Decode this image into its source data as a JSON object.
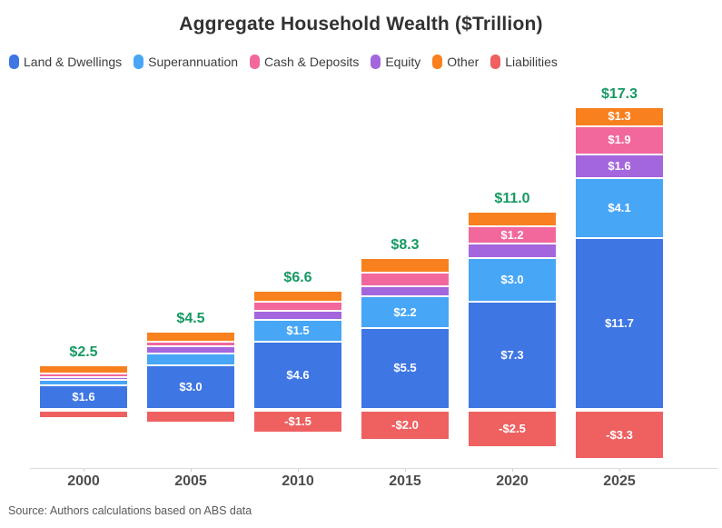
{
  "header": {
    "title": "Aggregate Household Wealth ($Trillion)"
  },
  "footer": {
    "source": "Source: Authors calculations based on ABS data"
  },
  "colors": {
    "title": "#323232",
    "total_label": "#169a62",
    "axis_line": "#dcdcdc",
    "x_label": "#4d4d4d",
    "source": "#595959",
    "segment_label": "#ffffff"
  },
  "chart_data": {
    "type": "bar",
    "stacked": true,
    "title": "Aggregate Household Wealth ($Trillion)",
    "unit": "$Trillion",
    "categories": [
      "2000",
      "2005",
      "2010",
      "2015",
      "2020",
      "2025"
    ],
    "totals": [
      2.5,
      4.5,
      6.6,
      8.3,
      11.0,
      17.3
    ],
    "total_labels": [
      "$2.5",
      "$4.5",
      "$6.6",
      "$8.3",
      "$11.0",
      "$17.3"
    ],
    "stack_order_bottom_to_top": [
      "Land & Dwellings",
      "Superannuation",
      "Equity",
      "Cash & Deposits",
      "Other"
    ],
    "series": [
      {
        "name": "Land & Dwellings",
        "color": "#3e76e4",
        "values": [
          1.6,
          3.0,
          4.6,
          5.5,
          7.3,
          11.7
        ],
        "labels": [
          "$1.6",
          "$3.0",
          "$4.6",
          "$5.5",
          "$7.3",
          "$11.7"
        ]
      },
      {
        "name": "Superannuation",
        "color": "#47a6f6",
        "values": [
          0.4,
          0.8,
          1.5,
          2.2,
          3.0,
          4.1
        ],
        "labels": [
          "",
          "",
          "$1.5",
          "$2.2",
          "$3.0",
          "$4.1"
        ]
      },
      {
        "name": "Cash & Deposits",
        "color": "#f2679c",
        "values": [
          0.2,
          0.3,
          0.6,
          0.9,
          1.2,
          1.9
        ],
        "labels": [
          "",
          "",
          "",
          "",
          "$1.2",
          "$1.9"
        ]
      },
      {
        "name": "Equity",
        "color": "#a466dd",
        "values": [
          0.2,
          0.5,
          0.6,
          0.7,
          1.0,
          1.6
        ],
        "labels": [
          "",
          "",
          "",
          "",
          "",
          "$1.6"
        ]
      },
      {
        "name": "Other",
        "color": "#f8801f",
        "values": [
          0.6,
          0.7,
          0.8,
          1.0,
          1.0,
          1.3
        ],
        "labels": [
          "",
          "",
          "",
          "",
          "",
          "$1.3"
        ]
      },
      {
        "name": "Liabilities",
        "color": "#ef6060",
        "values": [
          -0.5,
          -0.8,
          -1.5,
          -2.0,
          -2.5,
          -3.3
        ],
        "labels": [
          "",
          "",
          "-$1.5",
          "-$2.0",
          "-$2.5",
          "-$3.3"
        ]
      }
    ],
    "legend_position": "top-left",
    "grid": false,
    "xlabel": "",
    "ylabel": ""
  }
}
